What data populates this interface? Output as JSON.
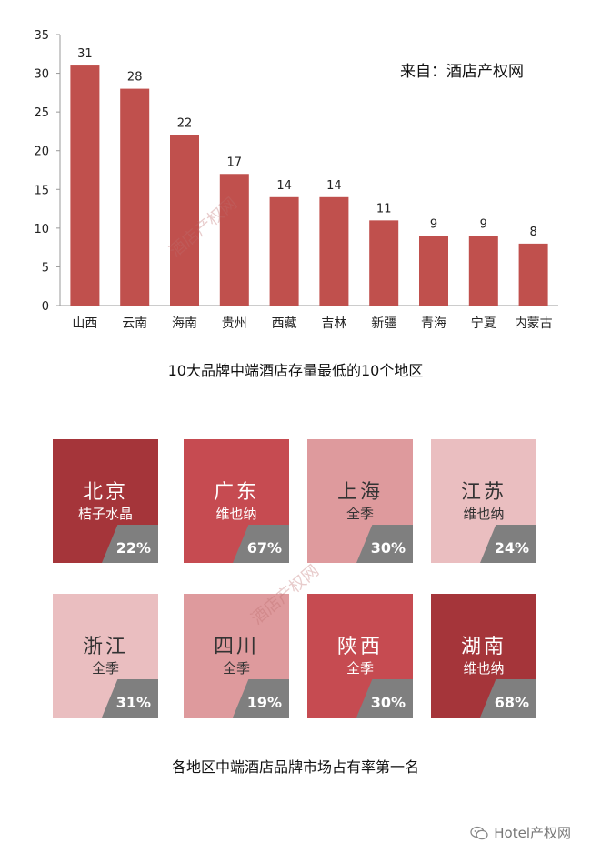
{
  "chart_data": {
    "type": "bar",
    "categories": [
      "山西",
      "云南",
      "海南",
      "贵州",
      "西藏",
      "吉林",
      "新疆",
      "青海",
      "宁夏",
      "内蒙古"
    ],
    "values": [
      31,
      28,
      22,
      17,
      14,
      14,
      11,
      9,
      9,
      8
    ],
    "data_labels": [
      "31",
      "28",
      "22",
      "17",
      "14",
      "14",
      "11",
      "9",
      "9",
      "8"
    ],
    "yticks": [
      "0",
      "5",
      "10",
      "15",
      "20",
      "25",
      "30",
      "35"
    ],
    "ylim": [
      0,
      35
    ],
    "title": "",
    "xlabel": "",
    "ylabel": "",
    "grid": false,
    "bar_color": "#c0504d"
  },
  "source_note": "来自：酒店产权网",
  "chart_caption": "10大品牌中端酒店存量最低的10个地区",
  "watermark": "酒店产权网",
  "tiles": [
    {
      "region": "北京",
      "brand": "桔子水晶",
      "share": "22%",
      "bg": "#a5353a",
      "fg": "#ffffff"
    },
    {
      "region": "广东",
      "brand": "维也纳",
      "share": "67%",
      "bg": "#c64b51",
      "fg": "#ffffff"
    },
    {
      "region": "上海",
      "brand": "全季",
      "share": "30%",
      "bg": "#de9a9d",
      "fg": "#333333"
    },
    {
      "region": "江苏",
      "brand": "维也纳",
      "share": "24%",
      "bg": "#eabec0",
      "fg": "#333333"
    },
    {
      "region": "浙江",
      "brand": "全季",
      "share": "31%",
      "bg": "#eabec0",
      "fg": "#333333"
    },
    {
      "region": "四川",
      "brand": "全季",
      "share": "19%",
      "bg": "#de9a9d",
      "fg": "#333333"
    },
    {
      "region": "陕西",
      "brand": "全季",
      "share": "30%",
      "bg": "#c64b51",
      "fg": "#ffffff"
    },
    {
      "region": "湖南",
      "brand": "维也纳",
      "share": "68%",
      "bg": "#a5353a",
      "fg": "#ffffff"
    }
  ],
  "tiles_caption": "各地区中端酒店品牌市场占有率第一名",
  "footer_text": "Hotel产权网"
}
